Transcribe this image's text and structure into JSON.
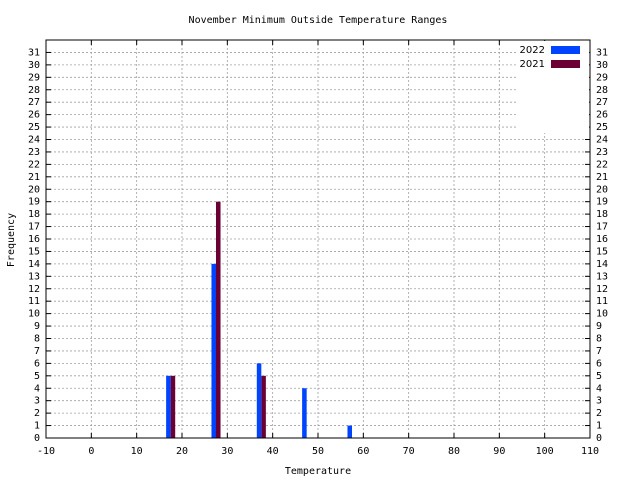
{
  "chart_data": {
    "type": "bar",
    "title": "November Minimum Outside Temperature Ranges",
    "x_label": "Temperature",
    "y_label": "Frequency",
    "xlim": [
      -10,
      110
    ],
    "xticks": [
      -10,
      0,
      10,
      20,
      30,
      40,
      50,
      60,
      70,
      80,
      90,
      100,
      110
    ],
    "ylim": [
      0,
      32
    ],
    "yticks": [
      0,
      1,
      2,
      3,
      4,
      5,
      6,
      7,
      8,
      9,
      10,
      11,
      12,
      13,
      14,
      15,
      16,
      17,
      18,
      19,
      20,
      21,
      22,
      23,
      24,
      25,
      26,
      27,
      28,
      29,
      30,
      31
    ],
    "grid": true,
    "legend": "top-right",
    "series": [
      {
        "name": "2022",
        "color": "#0044ff",
        "x": [
          17,
          27,
          37,
          47,
          57
        ],
        "values": [
          5,
          14,
          6,
          4,
          1
        ]
      },
      {
        "name": "2021",
        "color": "#6b0035",
        "x": [
          18,
          28,
          38
        ],
        "values": [
          5,
          19,
          5
        ]
      }
    ]
  }
}
